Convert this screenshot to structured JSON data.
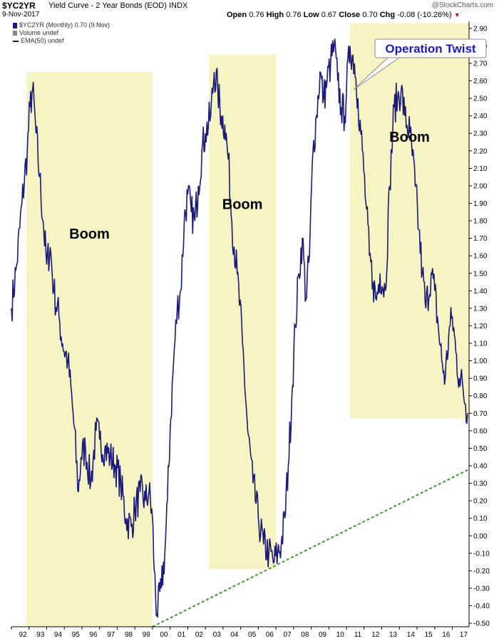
{
  "header": {
    "symbol": "$YC2YR",
    "title": "Yield Curve - 2 Year Bonds (EOD)",
    "exchange": "INDX",
    "date": "9-Nov-2017",
    "open_label": "Open",
    "open": "0.76",
    "high_label": "High",
    "high": "0.76",
    "low_label": "Low",
    "low": "0.67",
    "close_label": "Close",
    "close": "0.70",
    "chg_label": "Chg",
    "chg": "-0.08 (-10.26%)",
    "brand": "@StockCharts.com"
  },
  "legend": {
    "series": "$YC2YR (Monthly) 0.70 (9 Nov)",
    "volume": "Volume undef",
    "ema": "EMA(50) undef"
  },
  "colors": {
    "series": "#1a1a7a",
    "boom_fill": "#f7f4c4",
    "trendline": "#3a9a2a",
    "callout_text": "#1a1acc",
    "down": "#cc0033"
  },
  "chart_data": {
    "type": "line",
    "title": "Yield Curve - 2 Year Bonds (EOD)",
    "xlabel": "",
    "ylabel": "",
    "xlim": [
      1992.0,
      2017.95
    ],
    "ylim": [
      -0.52,
      2.94
    ],
    "y_axis_side": "right",
    "grid": false,
    "x_tick_labels": [
      "92",
      "93",
      "94",
      "95",
      "96",
      "97",
      "98",
      "99",
      "00",
      "01",
      "02",
      "03",
      "04",
      "05",
      "06",
      "07",
      "08",
      "09",
      "10",
      "11",
      "12",
      "13",
      "14",
      "15",
      "16",
      "17"
    ],
    "y_ticks": [
      -0.5,
      -0.4,
      -0.3,
      -0.2,
      -0.1,
      0.0,
      0.1,
      0.2,
      0.3,
      0.4,
      0.5,
      0.6,
      0.7,
      0.8,
      0.9,
      1.0,
      1.1,
      1.2,
      1.3,
      1.4,
      1.5,
      1.6,
      1.7,
      1.8,
      1.9,
      2.0,
      2.1,
      2.2,
      2.3,
      2.4,
      2.5,
      2.6,
      2.7,
      2.8,
      2.9
    ],
    "y_tick_labels": [
      "-0.50",
      "-0.40",
      "-0.30",
      "-0.20",
      "-0.10",
      "0.00",
      "0.10",
      "0.20",
      "0.30",
      "0.40",
      "0.50",
      "0.60",
      "0.70",
      "0.80",
      "0.90",
      "1.00",
      "1.10",
      "1.20",
      "1.30",
      "1.40",
      "1.50",
      "1.60",
      "1.70",
      "1.80",
      "1.90",
      "2.00",
      "2.10",
      "2.20",
      "2.30",
      "2.40",
      "2.50",
      "2.60",
      "2.70",
      "2.80",
      "2.90"
    ],
    "series": [
      {
        "values": [
          [
            1992.0,
            1.3
          ],
          [
            1992.3,
            1.55
          ],
          [
            1992.6,
            1.9
          ],
          [
            1992.9,
            2.2
          ],
          [
            1993.05,
            2.45
          ],
          [
            1993.2,
            2.55
          ],
          [
            1993.4,
            2.3
          ],
          [
            1993.6,
            2.05
          ],
          [
            1993.8,
            1.8
          ],
          [
            1994.0,
            1.55
          ],
          [
            1994.2,
            1.65
          ],
          [
            1994.4,
            1.4
          ],
          [
            1994.7,
            1.25
          ],
          [
            1994.9,
            1.1
          ],
          [
            1995.2,
            1.0
          ],
          [
            1995.5,
            0.7
          ],
          [
            1995.8,
            0.25
          ],
          [
            1995.95,
            0.45
          ],
          [
            1996.2,
            0.5
          ],
          [
            1996.5,
            0.3
          ],
          [
            1996.8,
            0.6
          ],
          [
            1997.0,
            0.55
          ],
          [
            1997.3,
            0.5
          ],
          [
            1997.6,
            0.45
          ],
          [
            1997.9,
            0.4
          ],
          [
            1998.2,
            0.3
          ],
          [
            1998.5,
            0.1
          ],
          [
            1998.8,
            0.05
          ],
          [
            1999.0,
            0.15
          ],
          [
            1999.3,
            0.25
          ],
          [
            1999.6,
            0.2
          ],
          [
            1999.8,
            0.25
          ],
          [
            2000.0,
            0.1
          ],
          [
            2000.1,
            -0.2
          ],
          [
            2000.25,
            -0.45
          ],
          [
            2000.5,
            -0.3
          ],
          [
            2000.7,
            -0.1
          ],
          [
            2000.85,
            0.2
          ],
          [
            2001.0,
            0.6
          ],
          [
            2001.2,
            1.0
          ],
          [
            2001.4,
            1.3
          ],
          [
            2001.6,
            1.4
          ],
          [
            2001.8,
            1.8
          ],
          [
            2002.0,
            1.95
          ],
          [
            2002.2,
            1.85
          ],
          [
            2002.4,
            1.8
          ],
          [
            2002.6,
            2.0
          ],
          [
            2002.8,
            2.2
          ],
          [
            2003.0,
            2.3
          ],
          [
            2003.3,
            2.4
          ],
          [
            2003.5,
            2.65
          ],
          [
            2003.7,
            2.55
          ],
          [
            2003.9,
            2.4
          ],
          [
            2004.1,
            2.35
          ],
          [
            2004.3,
            2.15
          ],
          [
            2004.5,
            1.8
          ],
          [
            2004.8,
            1.5
          ],
          [
            2005.1,
            1.1
          ],
          [
            2005.4,
            0.6
          ],
          [
            2005.7,
            0.3
          ],
          [
            2006.0,
            0.1
          ],
          [
            2006.3,
            -0.05
          ],
          [
            2006.6,
            -0.1
          ],
          [
            2006.9,
            -0.15
          ],
          [
            2007.1,
            -0.1
          ],
          [
            2007.3,
            -0.05
          ],
          [
            2007.5,
            0.1
          ],
          [
            2007.7,
            0.4
          ],
          [
            2007.9,
            0.8
          ],
          [
            2008.1,
            1.2
          ],
          [
            2008.3,
            1.5
          ],
          [
            2008.5,
            1.7
          ],
          [
            2008.7,
            1.35
          ],
          [
            2008.9,
            1.6
          ],
          [
            2009.1,
            2.2
          ],
          [
            2009.3,
            2.4
          ],
          [
            2009.5,
            2.65
          ],
          [
            2009.7,
            2.5
          ],
          [
            2009.9,
            2.6
          ],
          [
            2010.1,
            2.7
          ],
          [
            2010.3,
            2.8
          ],
          [
            2010.5,
            2.6
          ],
          [
            2010.7,
            2.45
          ],
          [
            2010.9,
            2.4
          ],
          [
            2011.0,
            2.55
          ],
          [
            2011.2,
            2.8
          ],
          [
            2011.45,
            2.7
          ],
          [
            2011.65,
            2.5
          ],
          [
            2011.9,
            2.2
          ],
          [
            2012.1,
            1.9
          ],
          [
            2012.3,
            1.6
          ],
          [
            2012.5,
            1.45
          ],
          [
            2012.7,
            1.35
          ],
          [
            2012.9,
            1.5
          ],
          [
            2013.2,
            1.4
          ],
          [
            2013.45,
            2.0
          ],
          [
            2013.7,
            2.45
          ],
          [
            2013.9,
            2.5
          ],
          [
            2014.1,
            2.55
          ],
          [
            2014.3,
            2.4
          ],
          [
            2014.6,
            2.3
          ],
          [
            2014.9,
            2.0
          ],
          [
            2015.1,
            1.75
          ],
          [
            2015.3,
            1.5
          ],
          [
            2015.5,
            1.3
          ],
          [
            2015.8,
            1.5
          ],
          [
            2016.0,
            1.4
          ],
          [
            2016.2,
            1.2
          ],
          [
            2016.4,
            1.0
          ],
          [
            2016.6,
            0.9
          ],
          [
            2016.8,
            1.15
          ],
          [
            2017.0,
            1.25
          ],
          [
            2017.2,
            1.05
          ],
          [
            2017.4,
            0.9
          ],
          [
            2017.6,
            0.85
          ],
          [
            2017.75,
            0.75
          ],
          [
            2017.86,
            0.7
          ]
        ]
      }
    ],
    "shaded_regions": [
      {
        "label": "Boom",
        "x0": 1992.85,
        "x1": 2000.0,
        "y0": -0.52,
        "y1": 2.65
      },
      {
        "label": "Boom",
        "x0": 2003.2,
        "x1": 2007.0,
        "y0": -0.19,
        "y1": 2.75
      },
      {
        "label": "Boom",
        "x0": 2011.2,
        "x1": 2017.95,
        "y0": 0.67,
        "y1": 2.93
      }
    ],
    "trendline": {
      "from": [
        2000.0,
        -0.52
      ],
      "to": [
        2017.95,
        0.38
      ]
    },
    "annotations": [
      {
        "text": "Operation Twist",
        "target": [
          2011.4,
          2.55
        ]
      }
    ]
  }
}
